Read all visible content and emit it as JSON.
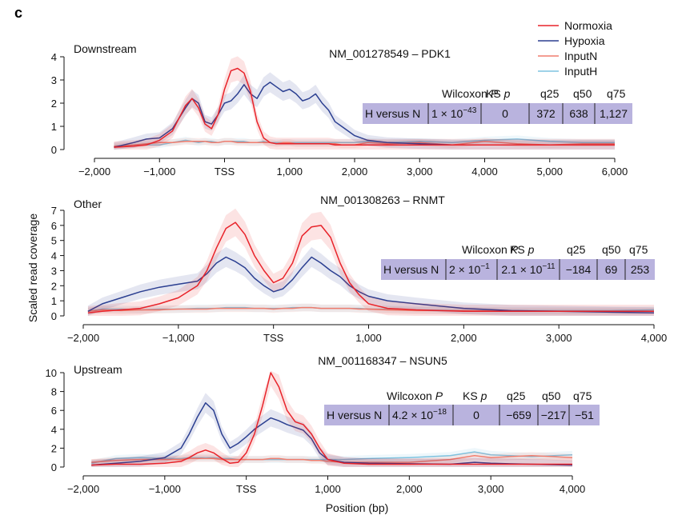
{
  "figure": {
    "panel_letter": "c",
    "ylabel": "Scaled read coverage",
    "xlabel": "Position (bp)",
    "legend": [
      {
        "name": "Normoxia",
        "color": "#e8232a"
      },
      {
        "name": "Hypoxia",
        "color": "#2b3f91"
      },
      {
        "name": "InputN",
        "color": "#f07d6e"
      },
      {
        "name": "InputH",
        "color": "#7ec3e0"
      }
    ],
    "table_header": [
      "Wilcoxon P",
      "KS p",
      "q25",
      "q50",
      "q75"
    ]
  },
  "chart_data": [
    {
      "type": "line",
      "region": "Downstream",
      "title": "NM_001278549 – PDK1",
      "ylim": [
        0,
        4
      ],
      "yticks": [
        "0",
        "1",
        "2",
        "3",
        "4"
      ],
      "xticks": [
        "−2,000",
        "−1,000",
        "TSS",
        "1,000",
        "2,000",
        "3,000",
        "4,000",
        "5,000",
        "6,000"
      ],
      "x": [
        -1700,
        -1400,
        -1200,
        -1000,
        -800,
        -600,
        -500,
        -400,
        -300,
        -200,
        -100,
        0,
        100,
        200,
        300,
        400,
        500,
        600,
        700,
        800,
        900,
        1000,
        1100,
        1200,
        1300,
        1400,
        1500,
        1600,
        1700,
        1800,
        2000,
        2200,
        2500,
        3000,
        3500,
        4000,
        4500,
        5000,
        5500,
        6000
      ],
      "series": [
        {
          "name": "Normoxia",
          "values": [
            0.1,
            0.15,
            0.2,
            0.4,
            0.8,
            1.9,
            2.2,
            1.8,
            1.1,
            0.9,
            1.5,
            2.6,
            3.4,
            3.5,
            3.3,
            2.5,
            1.2,
            0.5,
            0.3,
            0.25,
            0.25,
            0.25,
            0.25,
            0.25,
            0.25,
            0.25,
            0.25,
            0.25,
            0.2,
            0.2,
            0.2,
            0.2,
            0.2,
            0.2,
            0.2,
            0.2,
            0.2,
            0.2,
            0.2,
            0.2
          ]
        },
        {
          "name": "Hypoxia",
          "values": [
            0.1,
            0.3,
            0.45,
            0.5,
            0.9,
            1.8,
            2.2,
            2.0,
            1.2,
            1.1,
            1.5,
            2.0,
            2.1,
            2.4,
            2.8,
            2.4,
            2.2,
            2.7,
            2.9,
            2.7,
            2.5,
            2.6,
            2.4,
            2.1,
            2.2,
            2.4,
            2.0,
            1.7,
            1.2,
            1.0,
            0.6,
            0.4,
            0.3,
            0.25,
            0.2,
            0.2,
            0.2,
            0.2,
            0.2,
            0.2
          ]
        },
        {
          "name": "InputN",
          "values": [
            0.15,
            0.2,
            0.25,
            0.3,
            0.3,
            0.35,
            0.35,
            0.35,
            0.35,
            0.3,
            0.3,
            0.35,
            0.35,
            0.3,
            0.3,
            0.3,
            0.3,
            0.3,
            0.3,
            0.25,
            0.3,
            0.3,
            0.25,
            0.25,
            0.25,
            0.25,
            0.25,
            0.25,
            0.25,
            0.2,
            0.2,
            0.3,
            0.25,
            0.3,
            0.2,
            0.35,
            0.25,
            0.2,
            0.25,
            0.25
          ]
        },
        {
          "name": "InputH",
          "values": [
            0.1,
            0.2,
            0.2,
            0.2,
            0.3,
            0.4,
            0.35,
            0.3,
            0.35,
            0.35,
            0.3,
            0.35,
            0.35,
            0.35,
            0.35,
            0.3,
            0.3,
            0.35,
            0.3,
            0.3,
            0.3,
            0.3,
            0.3,
            0.3,
            0.3,
            0.3,
            0.3,
            0.3,
            0.3,
            0.3,
            0.3,
            0.35,
            0.3,
            0.35,
            0.3,
            0.4,
            0.45,
            0.35,
            0.3,
            0.3
          ]
        }
      ],
      "stats": {
        "row_label": "H versus N",
        "wilcoxon_p": "1 × 10",
        "wilcoxon_exp": "−43",
        "ks_p": "0",
        "q25": "372",
        "q50": "638",
        "q75": "1,127"
      }
    },
    {
      "type": "line",
      "region": "Other",
      "title": "NM_001308263 – RNMT",
      "ylim": [
        0,
        7
      ],
      "yticks": [
        "0",
        "1",
        "2",
        "3",
        "4",
        "5",
        "6",
        "7"
      ],
      "xticks": [
        "−2,000",
        "−1,000",
        "TSS",
        "1,000",
        "2,000",
        "3,000",
        "4,000"
      ],
      "x": [
        -1950,
        -1800,
        -1600,
        -1400,
        -1200,
        -1000,
        -800,
        -700,
        -600,
        -500,
        -400,
        -300,
        -200,
        -100,
        0,
        100,
        200,
        300,
        400,
        500,
        600,
        700,
        800,
        900,
        1000,
        1200,
        1500,
        2000,
        2500,
        3000,
        3500,
        4000
      ],
      "series": [
        {
          "name": "Normoxia",
          "values": [
            0.2,
            0.3,
            0.4,
            0.5,
            0.8,
            1.2,
            2.0,
            3.0,
            4.5,
            5.8,
            6.2,
            5.4,
            4.0,
            3.0,
            2.2,
            2.5,
            3.5,
            5.3,
            5.9,
            6.0,
            5.2,
            3.5,
            2.2,
            1.4,
            0.8,
            0.5,
            0.4,
            0.3,
            0.3,
            0.3,
            0.3,
            0.3
          ]
        },
        {
          "name": "Hypoxia",
          "values": [
            0.3,
            0.8,
            1.2,
            1.6,
            1.9,
            2.1,
            2.3,
            2.8,
            3.5,
            3.9,
            3.6,
            3.2,
            2.5,
            2.0,
            1.6,
            1.8,
            2.4,
            3.2,
            3.9,
            3.5,
            3.0,
            2.6,
            2.0,
            1.6,
            1.3,
            1.0,
            0.8,
            0.5,
            0.35,
            0.3,
            0.25,
            0.2
          ]
        },
        {
          "name": "InputN",
          "values": [
            0.3,
            0.4,
            0.35,
            0.4,
            0.4,
            0.45,
            0.45,
            0.45,
            0.5,
            0.5,
            0.5,
            0.5,
            0.5,
            0.5,
            0.45,
            0.5,
            0.5,
            0.55,
            0.55,
            0.5,
            0.5,
            0.5,
            0.5,
            0.45,
            0.45,
            0.4,
            0.35,
            0.35,
            0.3,
            0.3,
            0.3,
            0.3
          ]
        },
        {
          "name": "InputH",
          "values": [
            0.3,
            0.45,
            0.45,
            0.4,
            0.45,
            0.45,
            0.5,
            0.5,
            0.5,
            0.55,
            0.55,
            0.55,
            0.5,
            0.5,
            0.5,
            0.5,
            0.55,
            0.55,
            0.55,
            0.5,
            0.5,
            0.5,
            0.5,
            0.5,
            0.45,
            0.45,
            0.4,
            0.35,
            0.35,
            0.35,
            0.35,
            0.4
          ]
        }
      ],
      "stats": {
        "row_label": "H versus N",
        "wilcoxon_p": "2 × 10",
        "wilcoxon_exp": "−1",
        "ks_p": "2.1 × 10",
        "ks_exp": "−11",
        "q25": "−184",
        "q50": "69",
        "q75": "253"
      }
    },
    {
      "type": "line",
      "region": "Upstream",
      "title": "NM_001168347 – NSUN5",
      "ylim": [
        0,
        10
      ],
      "yticks": [
        "0",
        "2",
        "4",
        "6",
        "8",
        "10"
      ],
      "xticks": [
        "−2,000",
        "−1,000",
        "TSS",
        "1,000",
        "2,000",
        "3,000",
        "4,000"
      ],
      "x": [
        -1900,
        -1600,
        -1300,
        -1000,
        -800,
        -700,
        -600,
        -500,
        -400,
        -300,
        -200,
        -100,
        0,
        100,
        200,
        300,
        400,
        500,
        600,
        700,
        800,
        900,
        1000,
        1200,
        1500,
        2000,
        2500,
        2800,
        3000,
        3500,
        4000
      ],
      "series": [
        {
          "name": "Normoxia",
          "values": [
            0.2,
            0.3,
            0.3,
            0.4,
            0.6,
            1.0,
            1.5,
            1.8,
            1.5,
            0.9,
            0.4,
            0.5,
            1.5,
            3.5,
            6.5,
            10.0,
            8.5,
            6.0,
            4.8,
            4.5,
            3.5,
            2.0,
            0.8,
            0.4,
            0.3,
            0.3,
            0.3,
            0.3,
            0.3,
            0.3,
            0.3
          ]
        },
        {
          "name": "Hypoxia",
          "values": [
            0.2,
            0.4,
            0.6,
            1.0,
            2.0,
            3.5,
            5.3,
            6.8,
            6.0,
            3.5,
            2.0,
            2.5,
            3.2,
            4.0,
            4.6,
            5.2,
            4.9,
            4.5,
            4.2,
            3.9,
            3.0,
            1.5,
            0.8,
            0.5,
            0.4,
            0.35,
            0.3,
            0.5,
            0.4,
            0.3,
            0.2
          ]
        },
        {
          "name": "InputN",
          "values": [
            0.5,
            0.7,
            0.8,
            0.8,
            0.8,
            0.9,
            0.9,
            0.9,
            0.9,
            0.8,
            0.8,
            0.8,
            0.8,
            0.8,
            0.8,
            0.9,
            0.9,
            0.8,
            0.8,
            0.8,
            0.7,
            0.7,
            0.6,
            0.5,
            0.5,
            0.5,
            0.8,
            1.2,
            1.0,
            1.2,
            1.0
          ]
        },
        {
          "name": "InputH",
          "values": [
            0.4,
            0.9,
            1.0,
            0.9,
            0.9,
            1.0,
            1.0,
            1.0,
            1.0,
            0.9,
            0.9,
            0.8,
            0.8,
            0.8,
            0.8,
            0.8,
            0.8,
            0.8,
            0.8,
            0.8,
            0.8,
            0.8,
            0.8,
            0.8,
            0.9,
            1.0,
            1.2,
            1.6,
            1.3,
            1.1,
            1.3
          ]
        }
      ],
      "stats": {
        "row_label": "H versus N",
        "wilcoxon_p": "4.2 × 10",
        "wilcoxon_exp": "−18",
        "ks_p": "0",
        "q25": "−659",
        "q50": "−217",
        "q75": "−51"
      }
    }
  ]
}
